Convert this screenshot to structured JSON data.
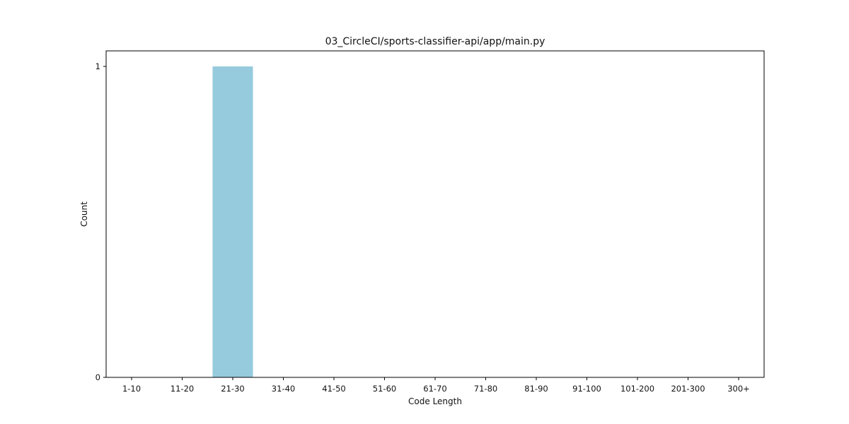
{
  "chart_data": {
    "type": "bar",
    "title": "03_CircleCI/sports-classifier-api/app/main.py",
    "xlabel": "Code Length",
    "ylabel": "Count",
    "categories": [
      "1-10",
      "11-20",
      "21-30",
      "31-40",
      "41-50",
      "51-60",
      "61-70",
      "71-80",
      "81-90",
      "91-100",
      "101-200",
      "201-300",
      "300+"
    ],
    "values": [
      0,
      0,
      1,
      0,
      0,
      0,
      0,
      0,
      0,
      0,
      0,
      0,
      0
    ],
    "yticks": [
      0,
      1
    ],
    "ylim": [
      0,
      1.05
    ],
    "grid": false,
    "bar_color": "#96cadd"
  }
}
